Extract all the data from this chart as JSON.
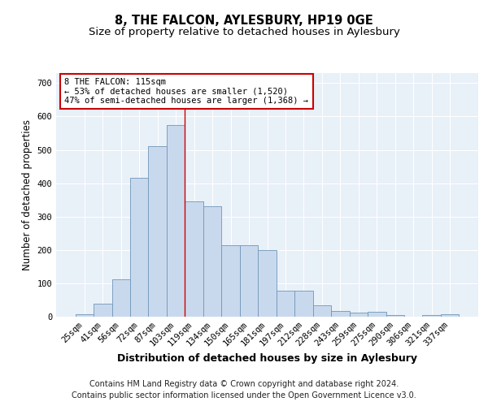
{
  "title": "8, THE FALCON, AYLESBURY, HP19 0GE",
  "subtitle": "Size of property relative to detached houses in Aylesbury",
  "xlabel": "Distribution of detached houses by size in Aylesbury",
  "ylabel": "Number of detached properties",
  "categories": [
    "25sqm",
    "41sqm",
    "56sqm",
    "72sqm",
    "87sqm",
    "103sqm",
    "119sqm",
    "134sqm",
    "150sqm",
    "165sqm",
    "181sqm",
    "197sqm",
    "212sqm",
    "228sqm",
    "243sqm",
    "259sqm",
    "275sqm",
    "290sqm",
    "306sqm",
    "321sqm",
    "337sqm"
  ],
  "values": [
    8,
    40,
    112,
    415,
    510,
    575,
    345,
    330,
    213,
    213,
    200,
    78,
    78,
    35,
    18,
    13,
    15,
    4,
    0,
    5,
    8
  ],
  "bar_color": "#c9d9ed",
  "bar_edge_color": "#7096b8",
  "ref_line_x": 5.5,
  "ref_line_color": "#cc0000",
  "annotation_text": "8 THE FALCON: 115sqm\n← 53% of detached houses are smaller (1,520)\n47% of semi-detached houses are larger (1,368) →",
  "annotation_box_color": "#ffffff",
  "annotation_box_edge": "#cc0000",
  "footer_line1": "Contains HM Land Registry data © Crown copyright and database right 2024.",
  "footer_line2": "Contains public sector information licensed under the Open Government Licence v3.0.",
  "ylim": [
    0,
    730
  ],
  "yticks": [
    0,
    100,
    200,
    300,
    400,
    500,
    600,
    700
  ],
  "background_color": "#e8f0f8",
  "grid_color": "#ffffff",
  "title_fontsize": 10.5,
  "subtitle_fontsize": 9.5,
  "axis_label_fontsize": 8.5,
  "xlabel_fontsize": 9,
  "tick_fontsize": 7.5,
  "footer_fontsize": 7,
  "annotation_fontsize": 7.5
}
